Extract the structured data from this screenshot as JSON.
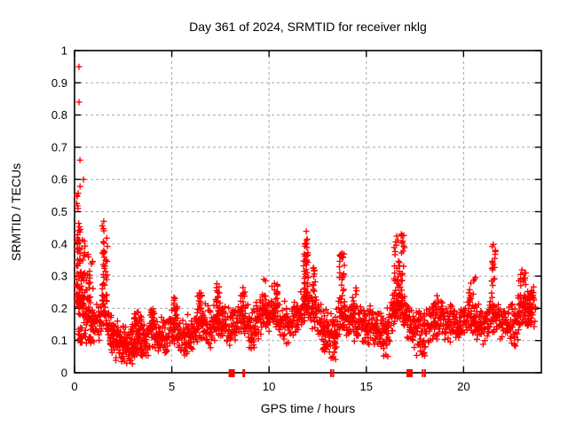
{
  "chart_data": {
    "type": "scatter",
    "title": "Day 361 of 2024, SRMTID for receiver nklg",
    "xlabel": "GPS time / hours",
    "ylabel": "SRMTID / TECUs",
    "xlim": [
      0,
      24
    ],
    "ylim": [
      0,
      1
    ],
    "xticks": [
      {
        "v": 0,
        "label": "0"
      },
      {
        "v": 5,
        "label": "5"
      },
      {
        "v": 10,
        "label": "10"
      },
      {
        "v": 15,
        "label": "15"
      },
      {
        "v": 20,
        "label": "20"
      }
    ],
    "yticks": [
      {
        "v": 0,
        "label": "0"
      },
      {
        "v": 0.1,
        "label": "0.1"
      },
      {
        "v": 0.2,
        "label": "0.2"
      },
      {
        "v": 0.3,
        "label": "0.3"
      },
      {
        "v": 0.4,
        "label": "0.4"
      },
      {
        "v": 0.5,
        "label": "0.5"
      },
      {
        "v": 0.6,
        "label": "0.6"
      },
      {
        "v": 0.7,
        "label": "0.7"
      },
      {
        "v": 0.8,
        "label": "0.8"
      },
      {
        "v": 0.9,
        "label": "0.9"
      },
      {
        "v": 1,
        "label": "1"
      }
    ],
    "grid": {
      "color": "#a8a8a8",
      "dash": "3 3",
      "on": true
    },
    "legend": "none",
    "marker": {
      "shape": "plus",
      "color": "#ff0000",
      "size": 7
    },
    "frame_color": "#000000",
    "text_color": "#000000",
    "seed": 42,
    "baseline": {
      "step": 0.03,
      "t_start": 0.02,
      "t_end": 23.7,
      "spread": 0.035,
      "trend": [
        [
          0,
          0.3
        ],
        [
          0.2,
          0.24
        ],
        [
          0.5,
          0.2
        ],
        [
          0.8,
          0.17
        ],
        [
          1.2,
          0.14
        ],
        [
          1.5,
          0.2
        ],
        [
          1.8,
          0.13
        ],
        [
          2.2,
          0.1
        ],
        [
          2.6,
          0.09
        ],
        [
          3.0,
          0.08
        ],
        [
          3.3,
          0.12
        ],
        [
          3.7,
          0.1
        ],
        [
          4.0,
          0.14
        ],
        [
          4.4,
          0.11
        ],
        [
          4.8,
          0.12
        ],
        [
          5.2,
          0.15
        ],
        [
          5.6,
          0.11
        ],
        [
          6.0,
          0.12
        ],
        [
          6.5,
          0.16
        ],
        [
          7.0,
          0.14
        ],
        [
          7.4,
          0.17
        ],
        [
          7.8,
          0.14
        ],
        [
          8.2,
          0.15
        ],
        [
          8.7,
          0.18
        ],
        [
          9.1,
          0.13
        ],
        [
          9.5,
          0.17
        ],
        [
          9.8,
          0.18
        ],
        [
          10.2,
          0.18
        ],
        [
          10.6,
          0.16
        ],
        [
          11.0,
          0.15
        ],
        [
          11.4,
          0.17
        ],
        [
          11.9,
          0.21
        ],
        [
          12.3,
          0.19
        ],
        [
          12.7,
          0.15
        ],
        [
          13.1,
          0.12
        ],
        [
          13.4,
          0.13
        ],
        [
          13.8,
          0.18
        ],
        [
          14.2,
          0.17
        ],
        [
          14.6,
          0.15
        ],
        [
          15.0,
          0.14
        ],
        [
          15.4,
          0.15
        ],
        [
          15.8,
          0.12
        ],
        [
          16.2,
          0.16
        ],
        [
          16.7,
          0.22
        ],
        [
          17.1,
          0.17
        ],
        [
          17.5,
          0.13
        ],
        [
          17.9,
          0.12
        ],
        [
          18.3,
          0.15
        ],
        [
          18.7,
          0.17
        ],
        [
          19.1,
          0.15
        ],
        [
          19.5,
          0.16
        ],
        [
          19.9,
          0.15
        ],
        [
          20.3,
          0.18
        ],
        [
          20.7,
          0.16
        ],
        [
          21.1,
          0.15
        ],
        [
          21.5,
          0.19
        ],
        [
          21.9,
          0.16
        ],
        [
          22.3,
          0.15
        ],
        [
          22.7,
          0.16
        ],
        [
          23.1,
          0.2
        ],
        [
          23.4,
          0.19
        ],
        [
          23.7,
          0.21
        ]
      ]
    },
    "columns": [
      [
        0.15,
        0.15,
        0.28,
        0.58,
        35
      ],
      [
        0.32,
        0.22,
        0.12,
        0.42,
        45
      ],
      [
        0.55,
        0.35,
        0.09,
        0.14,
        25
      ],
      [
        0.7,
        0.25,
        0.16,
        0.38,
        30
      ],
      [
        1.55,
        0.14,
        0.22,
        0.46,
        40
      ],
      [
        2.1,
        0.3,
        0.07,
        0.13,
        25
      ],
      [
        3.2,
        0.25,
        0.12,
        0.19,
        22
      ],
      [
        4.0,
        0.12,
        0.13,
        0.21,
        15
      ],
      [
        5.2,
        0.12,
        0.13,
        0.26,
        18
      ],
      [
        6.5,
        0.2,
        0.15,
        0.25,
        18
      ],
      [
        7.35,
        0.12,
        0.15,
        0.28,
        18
      ],
      [
        8.65,
        0.15,
        0.17,
        0.28,
        15
      ],
      [
        9.75,
        0.1,
        0.17,
        0.3,
        14
      ],
      [
        10.3,
        0.15,
        0.17,
        0.28,
        14
      ],
      [
        11.9,
        0.13,
        0.22,
        0.44,
        45
      ],
      [
        12.3,
        0.1,
        0.2,
        0.33,
        18
      ],
      [
        13.75,
        0.14,
        0.17,
        0.38,
        35
      ],
      [
        14.35,
        0.15,
        0.16,
        0.27,
        12
      ],
      [
        16.7,
        0.28,
        0.18,
        0.43,
        55
      ],
      [
        18.6,
        0.15,
        0.14,
        0.27,
        14
      ],
      [
        20.45,
        0.2,
        0.15,
        0.3,
        16
      ],
      [
        21.55,
        0.11,
        0.2,
        0.4,
        22
      ],
      [
        23.0,
        0.22,
        0.17,
        0.32,
        25
      ],
      [
        23.45,
        0.18,
        0.15,
        0.28,
        18
      ],
      [
        2.8,
        0.4,
        0.05,
        0.09,
        16
      ],
      [
        3.5,
        0.3,
        0.05,
        0.09,
        12
      ],
      [
        5.9,
        0.25,
        0.06,
        0.1,
        10
      ],
      [
        9.05,
        0.08,
        0.07,
        0.12,
        7
      ],
      [
        12.9,
        0.15,
        0.05,
        0.1,
        9
      ],
      [
        13.3,
        0.12,
        0.03,
        0.1,
        10
      ],
      [
        16.0,
        0.15,
        0.05,
        0.1,
        9
      ],
      [
        17.8,
        0.25,
        0.05,
        0.1,
        10
      ],
      [
        22.6,
        0.08,
        0.08,
        0.12,
        6
      ]
    ],
    "outliers": [
      [
        0.23,
        0.95
      ],
      [
        0.23,
        0.84
      ],
      [
        0.28,
        0.66
      ],
      [
        0.46,
        0.6
      ],
      [
        0.12,
        0.55
      ],
      [
        0.18,
        0.51
      ],
      [
        0.08,
        0.5
      ],
      [
        1.5,
        0.47
      ]
    ],
    "zero_marks": [
      {
        "t": 8.08,
        "w": 7
      },
      {
        "t": 8.7,
        "w": 3
      },
      {
        "t": 13.18,
        "w": 2
      },
      {
        "t": 13.3,
        "w": 2
      },
      {
        "t": 17.22,
        "w": 7
      },
      {
        "t": 17.9,
        "w": 2
      },
      {
        "t": 18.02,
        "w": 2
      }
    ]
  }
}
